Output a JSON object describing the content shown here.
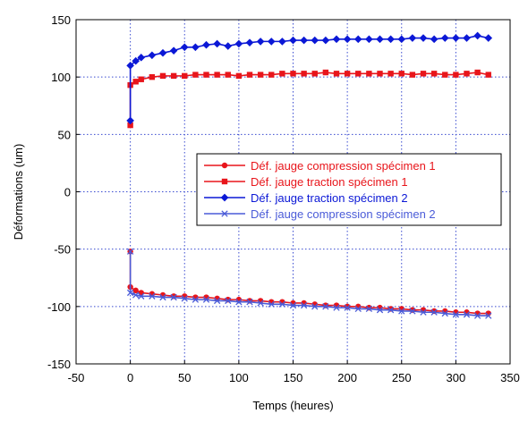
{
  "chart_data": {
    "type": "line",
    "title": "",
    "xlabel": "Temps (heures)",
    "ylabel": "Déformations (um)",
    "xlim": [
      -50,
      350
    ],
    "ylim": [
      -150,
      150
    ],
    "xticks": [
      -50,
      0,
      50,
      100,
      150,
      200,
      250,
      300,
      350
    ],
    "yticks": [
      -150,
      -100,
      -50,
      0,
      50,
      100,
      150
    ],
    "grid": true,
    "legend_position": "center-right",
    "series": [
      {
        "name": "Déf. jauge compression spécimen 1",
        "color": "#e8151b",
        "marker": "circle",
        "x": [
          0,
          0,
          5,
          10,
          20,
          30,
          40,
          50,
          60,
          70,
          80,
          90,
          100,
          110,
          120,
          130,
          140,
          150,
          160,
          170,
          180,
          190,
          200,
          210,
          220,
          230,
          240,
          250,
          260,
          270,
          280,
          290,
          300,
          310,
          320,
          330
        ],
        "y": [
          -52,
          -83,
          -86,
          -88,
          -89,
          -90,
          -91,
          -91,
          -92,
          -92,
          -93,
          -94,
          -94,
          -95,
          -95,
          -96,
          -96,
          -97,
          -97,
          -98,
          -99,
          -99,
          -100,
          -100,
          -101,
          -101,
          -102,
          -102,
          -103,
          -103,
          -104,
          -104,
          -105,
          -105,
          -106,
          -106
        ]
      },
      {
        "name": "Déf. jauge traction spécimen 1",
        "color": "#e8151b",
        "marker": "square",
        "x": [
          0,
          0,
          5,
          10,
          20,
          30,
          40,
          50,
          60,
          70,
          80,
          90,
          100,
          110,
          120,
          130,
          140,
          150,
          160,
          170,
          180,
          190,
          200,
          210,
          220,
          230,
          240,
          250,
          260,
          270,
          280,
          290,
          300,
          310,
          320,
          330
        ],
        "y": [
          58,
          93,
          96,
          98,
          100,
          101,
          101,
          101,
          102,
          102,
          102,
          102,
          101,
          102,
          102,
          102,
          103,
          103,
          103,
          103,
          104,
          103,
          103,
          103,
          103,
          103,
          103,
          103,
          102,
          103,
          103,
          102,
          102,
          103,
          104,
          102
        ]
      },
      {
        "name": "Déf. jauge traction spécimen 2",
        "color": "#0b18d6",
        "marker": "diamond",
        "x": [
          0,
          0,
          5,
          10,
          20,
          30,
          40,
          50,
          60,
          70,
          80,
          90,
          100,
          110,
          120,
          130,
          140,
          150,
          160,
          170,
          180,
          190,
          200,
          210,
          220,
          230,
          240,
          250,
          260,
          270,
          280,
          290,
          300,
          310,
          320,
          330
        ],
        "y": [
          62,
          110,
          114,
          117,
          119,
          121,
          123,
          126,
          126,
          128,
          129,
          127,
          129,
          130,
          131,
          131,
          131,
          132,
          132,
          132,
          132,
          133,
          133,
          133,
          133,
          133,
          133,
          133,
          134,
          134,
          133,
          134,
          134,
          134,
          136,
          134
        ]
      },
      {
        "name": "Déf. jauge compression spécimen 2",
        "color": "#4a5bd8",
        "marker": "x",
        "x": [
          0,
          0,
          5,
          10,
          20,
          30,
          40,
          50,
          60,
          70,
          80,
          90,
          100,
          110,
          120,
          130,
          140,
          150,
          160,
          170,
          180,
          190,
          200,
          210,
          220,
          230,
          240,
          250,
          260,
          270,
          280,
          290,
          300,
          310,
          320,
          330
        ],
        "y": [
          -52,
          -88,
          -90,
          -91,
          -91,
          -92,
          -92,
          -93,
          -94,
          -94,
          -95,
          -95,
          -96,
          -96,
          -97,
          -98,
          -98,
          -99,
          -99,
          -100,
          -100,
          -101,
          -101,
          -102,
          -102,
          -103,
          -103,
          -104,
          -104,
          -105,
          -105,
          -106,
          -107,
          -107,
          -108,
          -108
        ]
      }
    ]
  }
}
